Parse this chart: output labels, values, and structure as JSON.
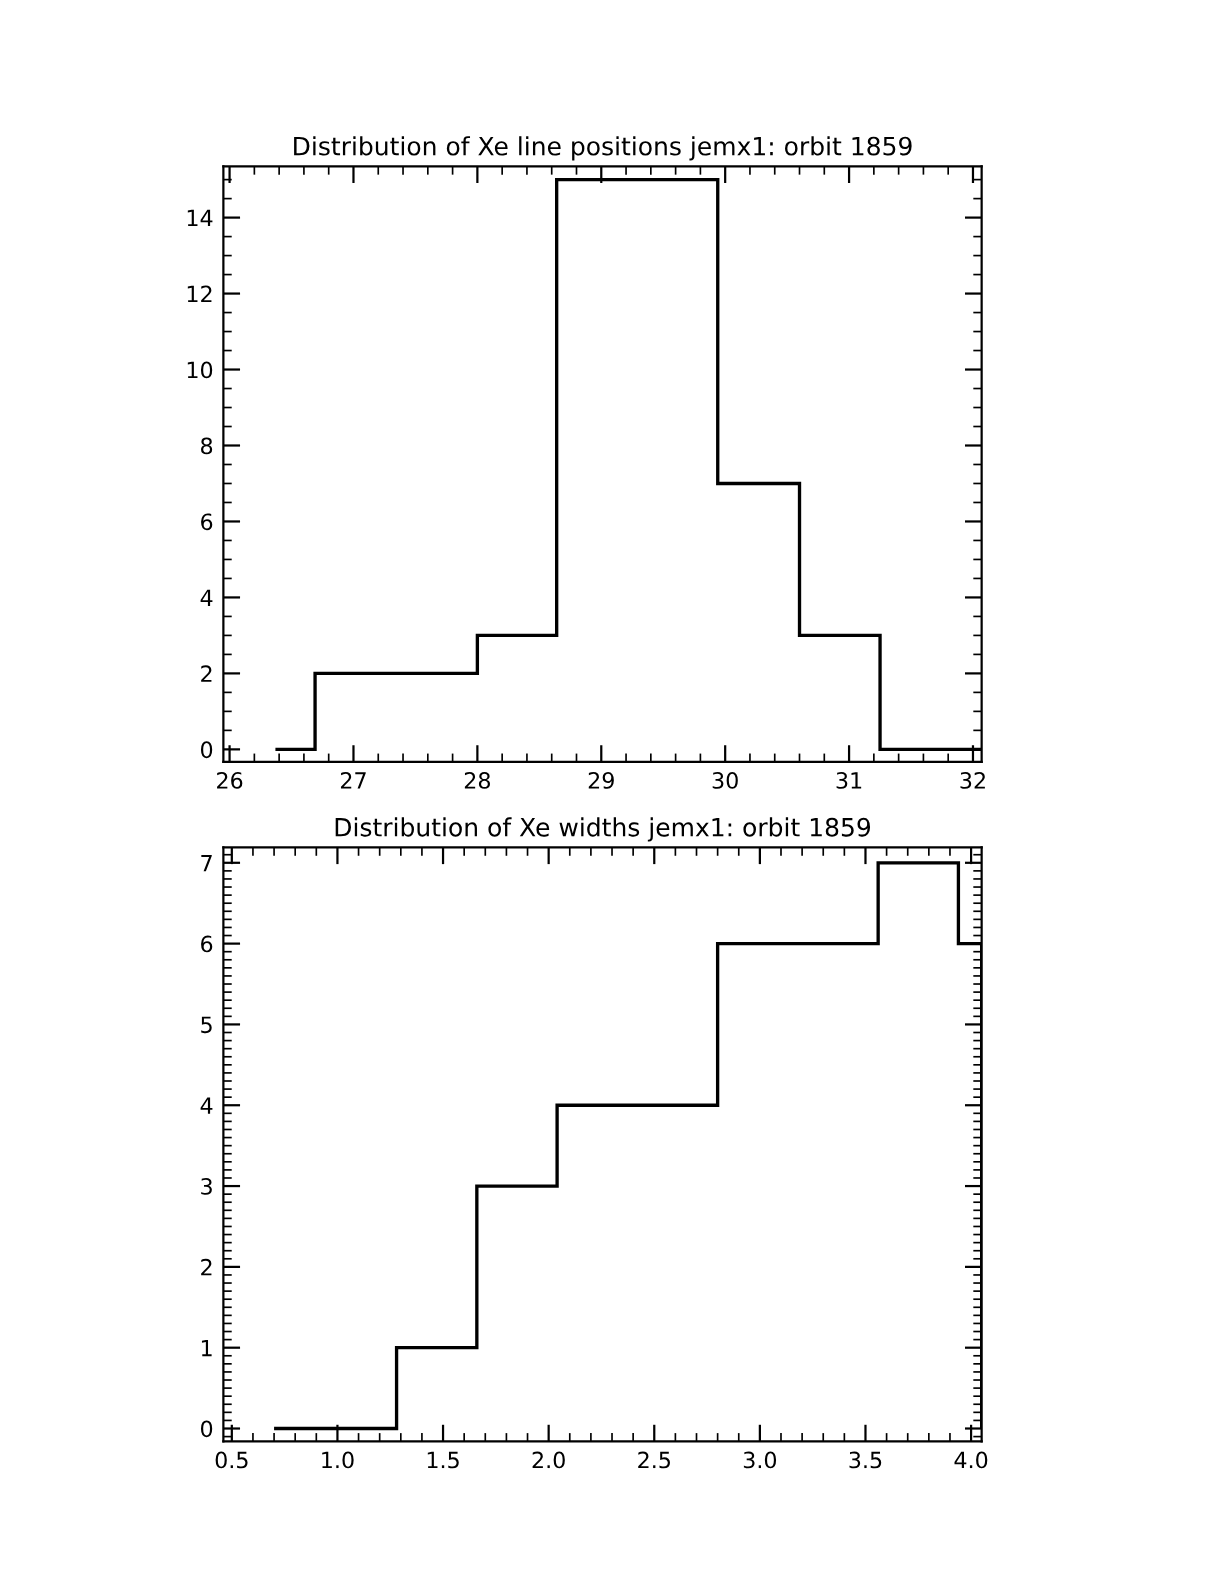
{
  "chart_data": [
    {
      "type": "histogram",
      "title": "Distribution of Xe line positions jemx1: orbit 1859",
      "bins": [
        26.37,
        26.69,
        28.0,
        28.64,
        29.94,
        30.6,
        31.25,
        32.07
      ],
      "values": [
        0,
        2,
        3,
        15,
        7,
        3,
        0
      ],
      "color": "#000000",
      "xlim": [
        25.95,
        32.07
      ],
      "xticks": [
        26,
        27,
        28,
        29,
        30,
        31,
        32
      ],
      "ylim": [
        -0.33,
        15.35
      ],
      "yticks": [
        0,
        2,
        4,
        6,
        8,
        10,
        12,
        14
      ],
      "grid": false,
      "legend": false
    },
    {
      "type": "histogram",
      "title": "Distribution of Xe widths jemx1: orbit 1859",
      "bins": [
        0.7,
        1.28,
        1.66,
        2.04,
        2.8,
        3.56,
        3.94,
        4.05
      ],
      "values": [
        0,
        1,
        3,
        4,
        6,
        7,
        6
      ],
      "color": "#000000",
      "xlim": [
        0.46,
        4.05
      ],
      "xticks": [
        {
          "value": 0.5,
          "label": "0.5"
        },
        {
          "value": 1.0,
          "label": "1.0"
        },
        {
          "value": 1.5,
          "label": "1.5"
        },
        {
          "value": 2.0,
          "label": "2.0"
        },
        {
          "value": 2.5,
          "label": "2.5"
        },
        {
          "value": 3.0,
          "label": "3.0"
        },
        {
          "value": 3.5,
          "label": "3.5"
        },
        {
          "value": 4.0,
          "label": "4.0"
        }
      ],
      "ylim": [
        -0.16,
        7.19
      ],
      "yticks": [
        0,
        1,
        2,
        3,
        4,
        5,
        6,
        7
      ],
      "grid": false,
      "legend": false
    }
  ]
}
